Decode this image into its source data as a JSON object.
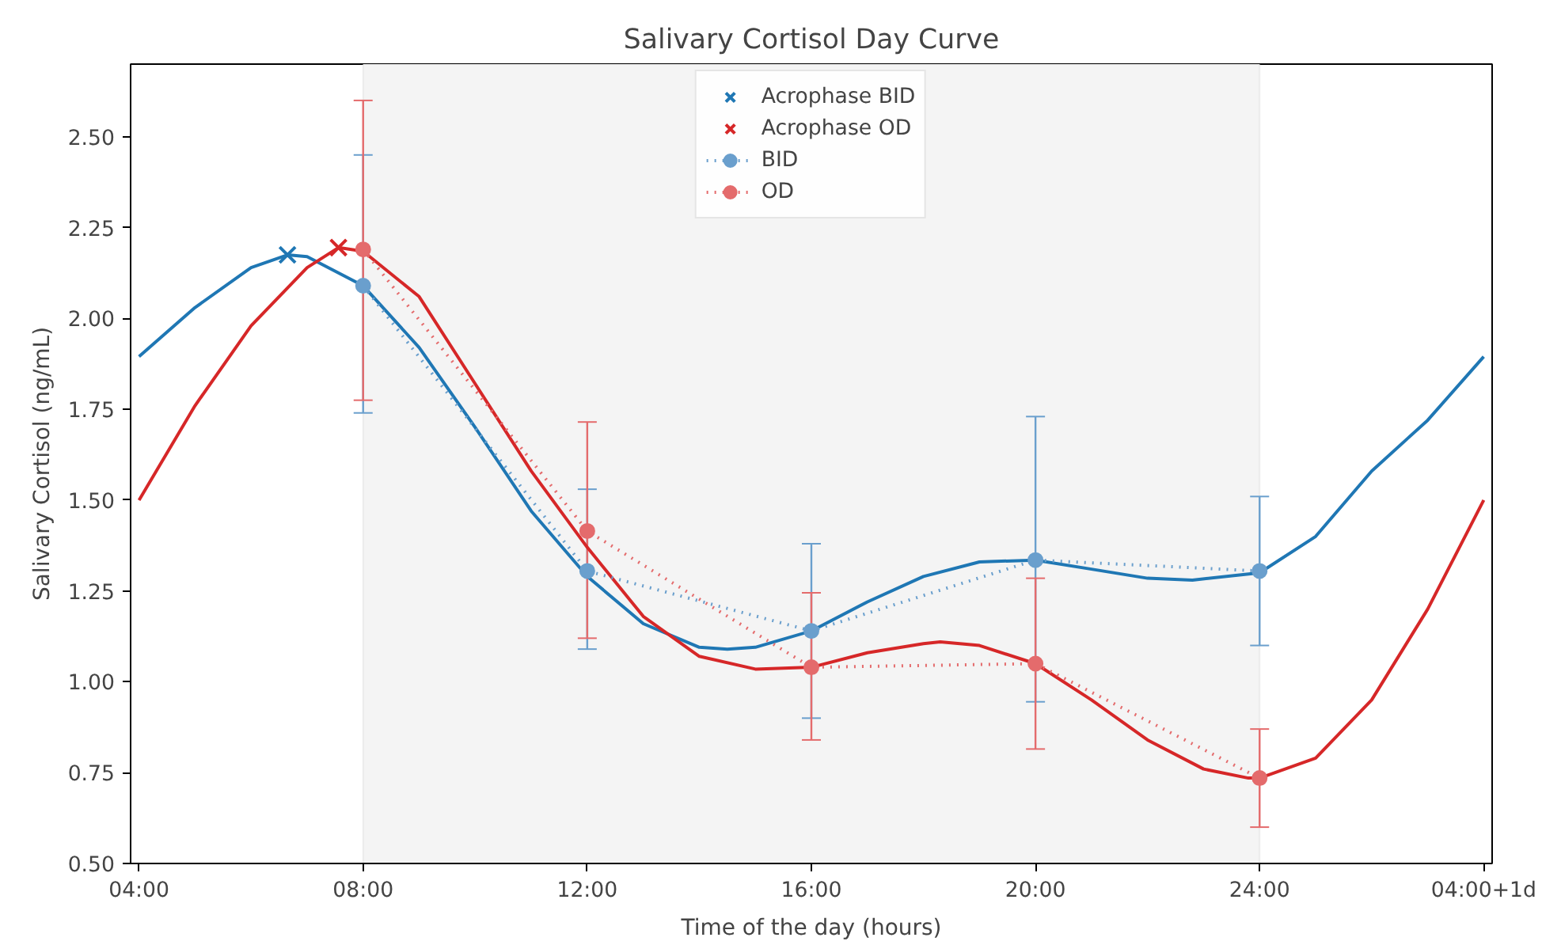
{
  "chart_data": {
    "type": "line",
    "title": "Salivary Cortisol Day Curve",
    "xlabel": "Time of the day (hours)",
    "ylabel": "Salivary Cortisol (ng/mL)",
    "xlim": [
      3.85,
      28.15
    ],
    "ylim": [
      0.5,
      2.7
    ],
    "xticks": [
      {
        "value": 4,
        "label": "04:00"
      },
      {
        "value": 8,
        "label": "08:00"
      },
      {
        "value": 12,
        "label": "12:00"
      },
      {
        "value": 16,
        "label": "16:00"
      },
      {
        "value": 20,
        "label": "20:00"
      },
      {
        "value": 24,
        "label": "24:00"
      },
      {
        "value": 28,
        "label": "04:00+1d"
      }
    ],
    "yticks": [
      {
        "value": 0.5,
        "label": "0.50"
      },
      {
        "value": 0.75,
        "label": "0.75"
      },
      {
        "value": 1.0,
        "label": "1.00"
      },
      {
        "value": 1.25,
        "label": "1.25"
      },
      {
        "value": 1.5,
        "label": "1.50"
      },
      {
        "value": 1.75,
        "label": "1.75"
      },
      {
        "value": 2.0,
        "label": "2.00"
      },
      {
        "value": 2.25,
        "label": "2.25"
      },
      {
        "value": 2.5,
        "label": "2.50"
      }
    ],
    "grid": false,
    "legend": "top",
    "bands": [
      {
        "axis": "x",
        "from": 8,
        "to": 24,
        "color": "#f4f4f4"
      }
    ],
    "series": [
      {
        "color": "#1f77b4",
        "line_style": "solid",
        "marker": "none",
        "x": [
          4,
          5,
          6,
          6.65,
          7,
          8,
          9,
          10,
          11,
          12,
          13,
          14,
          14.5,
          15,
          16,
          17,
          18,
          19,
          20,
          21,
          22,
          22.8,
          24,
          25,
          26,
          27,
          28
        ],
        "values": [
          1.895,
          2.03,
          2.14,
          2.175,
          2.17,
          2.09,
          1.92,
          1.7,
          1.47,
          1.29,
          1.16,
          1.095,
          1.09,
          1.095,
          1.14,
          1.22,
          1.29,
          1.33,
          1.335,
          1.31,
          1.285,
          1.28,
          1.3,
          1.4,
          1.58,
          1.72,
          1.895
        ]
      },
      {
        "color": "#d62728",
        "line_style": "solid",
        "marker": "none",
        "x": [
          4,
          5,
          6,
          7,
          7.56,
          8,
          9,
          10,
          11,
          12,
          13,
          14,
          15,
          16,
          17,
          18,
          18.3,
          19,
          20,
          21,
          22,
          23,
          23.8,
          24,
          25,
          26,
          27,
          28
        ],
        "values": [
          1.5,
          1.76,
          1.98,
          2.14,
          2.195,
          2.185,
          2.06,
          1.82,
          1.58,
          1.37,
          1.18,
          1.07,
          1.035,
          1.04,
          1.08,
          1.105,
          1.11,
          1.1,
          1.05,
          0.95,
          0.84,
          0.76,
          0.735,
          0.735,
          0.79,
          0.95,
          1.2,
          1.5
        ]
      },
      {
        "type": "scatter",
        "name": "Acrophase BID",
        "color": "#1f77b4",
        "marker": "cross",
        "x": [
          6.65
        ],
        "values": [
          2.175
        ]
      },
      {
        "type": "scatter",
        "name": "Acrophase OD",
        "color": "#d62728",
        "marker": "cross",
        "x": [
          7.56
        ],
        "values": [
          2.195
        ]
      },
      {
        "name": "BID",
        "color": "#6a9fcd",
        "line_style": "dotted",
        "marker": "circle",
        "x": [
          8,
          12,
          16,
          20,
          24
        ],
        "values": [
          2.09,
          1.305,
          1.14,
          1.335,
          1.305
        ],
        "errors": [
          [
            1.74,
            2.45
          ],
          [
            1.09,
            1.53
          ],
          [
            0.9,
            1.38
          ],
          [
            0.945,
            1.73
          ],
          [
            1.1,
            1.51
          ]
        ]
      },
      {
        "name": "OD",
        "color": "#e46b6c",
        "line_style": "dotted",
        "marker": "circle",
        "x": [
          8,
          12,
          16,
          20,
          24
        ],
        "values": [
          2.19,
          1.415,
          1.04,
          1.05,
          0.735
        ],
        "errors": [
          [
            1.775,
            2.6
          ],
          [
            1.12,
            1.715
          ],
          [
            0.84,
            1.245
          ],
          [
            0.815,
            1.285
          ],
          [
            0.6,
            0.87
          ]
        ]
      }
    ]
  }
}
